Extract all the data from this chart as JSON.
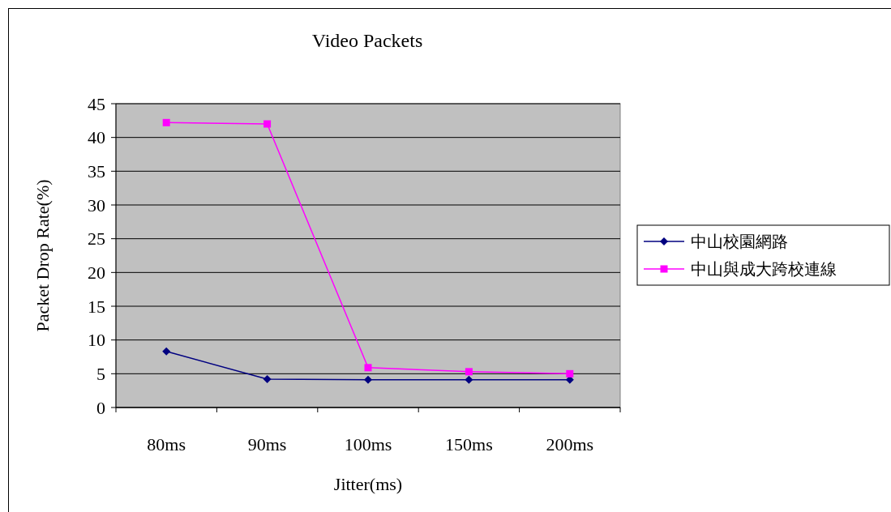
{
  "chart_data": {
    "type": "line",
    "title": "Video Packets",
    "xlabel": "Jitter(ms)",
    "ylabel": "Packet Drop Rate(%)",
    "categories": [
      "80ms",
      "90ms",
      "100ms",
      "150ms",
      "200ms"
    ],
    "ylim": [
      0,
      45
    ],
    "yticks": [
      0,
      5,
      10,
      15,
      20,
      25,
      30,
      35,
      40,
      45
    ],
    "grid": "y",
    "legend": "right",
    "series": [
      {
        "name": "中山校園網路",
        "color": "#000080",
        "marker": "diamond",
        "values": [
          8.3,
          4.2,
          4.1,
          4.1,
          4.1
        ]
      },
      {
        "name": "中山與成大跨校連線",
        "color": "#ff00ff",
        "marker": "square",
        "values": [
          42.2,
          42.0,
          5.9,
          5.3,
          5.0
        ]
      }
    ]
  }
}
